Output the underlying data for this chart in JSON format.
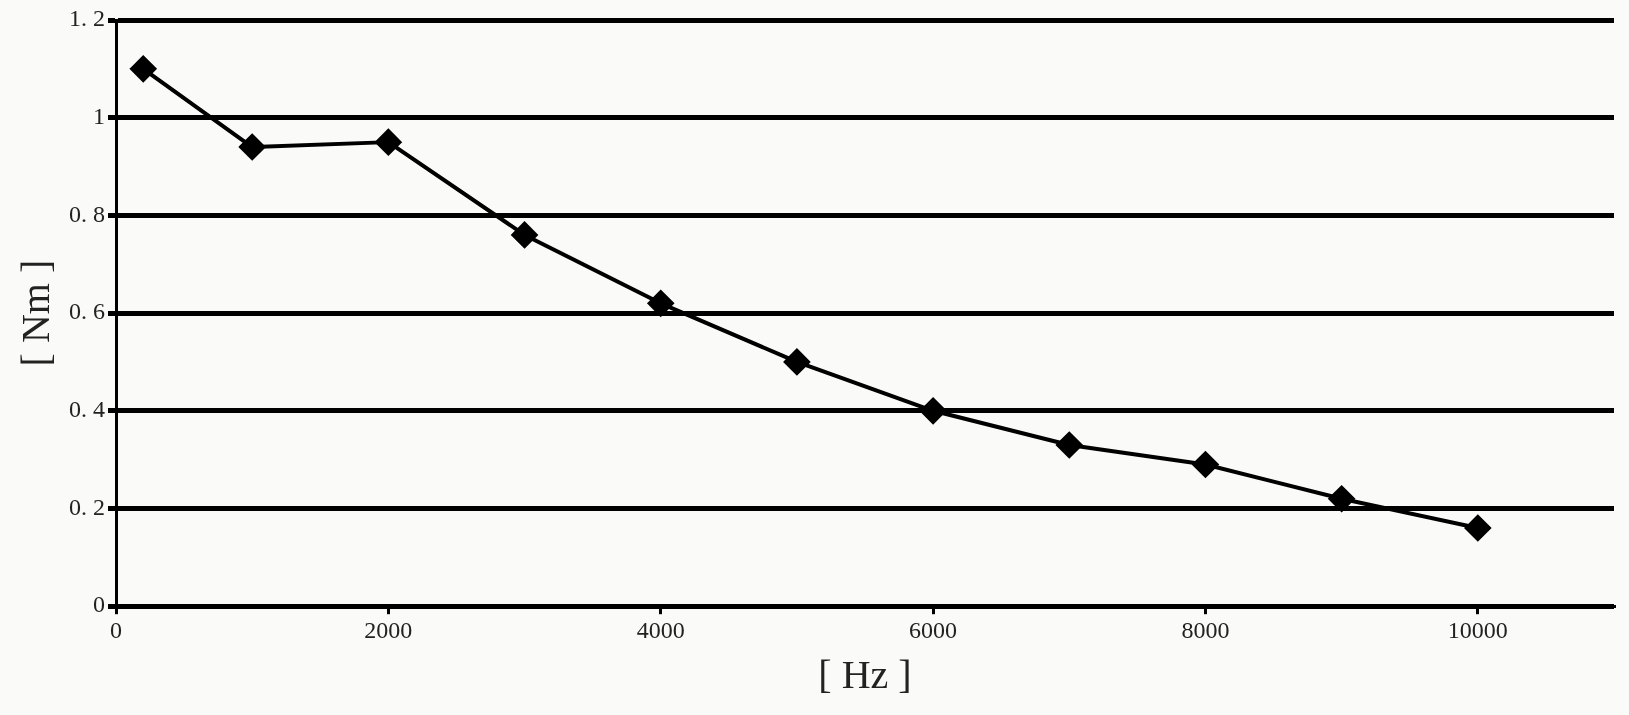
{
  "chart_data": {
    "type": "line",
    "xlabel": "[ Hz ]",
    "ylabel": "[ Nm ]",
    "x": [
      200,
      1000,
      2000,
      3000,
      4000,
      5000,
      6000,
      7000,
      8000,
      9000,
      10000
    ],
    "series": [
      {
        "color": "#000000",
        "values": [
          1.1,
          0.94,
          0.95,
          0.76,
          0.62,
          0.5,
          0.4,
          0.33,
          0.29,
          0.22,
          0.16
        ]
      }
    ],
    "xlim": [
      0,
      11000
    ],
    "xticks": [
      0,
      2000,
      4000,
      6000,
      8000,
      10000
    ],
    "ylim": [
      0,
      1.2
    ],
    "yticks": [
      0,
      {
        "value": 0.2,
        "label": "0. 2"
      },
      {
        "value": 0.4,
        "label": "0. 4"
      },
      {
        "value": 0.6,
        "label": "0. 6"
      },
      {
        "value": 0.8,
        "label": "0. 8"
      },
      1,
      {
        "value": 1.2,
        "label": "1. 2"
      }
    ],
    "grid": "y",
    "legend": false,
    "marker": "diamond",
    "line_style": "solid"
  }
}
